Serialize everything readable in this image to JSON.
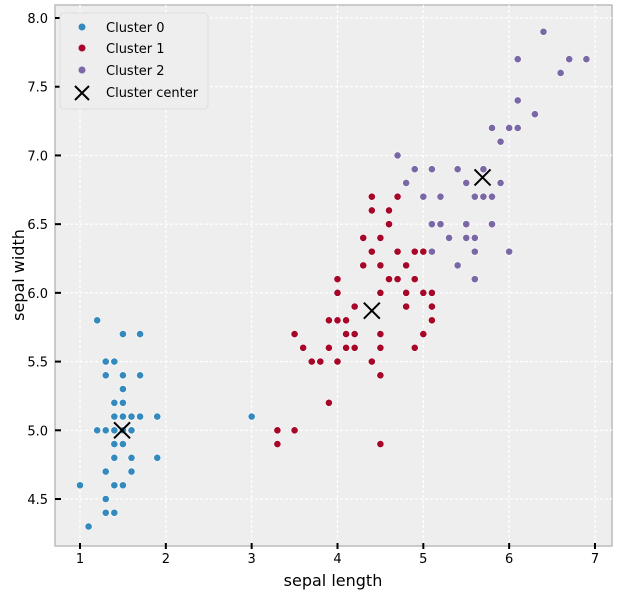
{
  "chart_data": {
    "type": "scatter",
    "xlabel": "sepal length",
    "ylabel": "sepal width",
    "xlim": [
      0.7,
      7.2
    ],
    "ylim": [
      4.15,
      8.1
    ],
    "xticks": [
      "1",
      "2",
      "3",
      "4",
      "5",
      "6",
      "7"
    ],
    "yticks": [
      "4.5",
      "5.0",
      "5.5",
      "6.0",
      "6.5",
      "7.0",
      "7.5",
      "8.0"
    ],
    "grid": true,
    "legend_position": "top-left",
    "legend": [
      "Cluster 0",
      "Cluster 1",
      "Cluster 2",
      "Cluster center"
    ],
    "colors": {
      "cluster0": "#348ABD",
      "cluster1": "#A60628",
      "cluster2": "#7A68A6",
      "center": "#000000",
      "background": "#EEEEEE"
    },
    "centers": [
      [
        1.49,
        5.0
      ],
      [
        4.4,
        5.87
      ],
      [
        5.69,
        6.84
      ]
    ],
    "points": [
      [
        1.4,
        5.1
      ],
      [
        1.4,
        4.9
      ],
      [
        1.3,
        4.7
      ],
      [
        1.5,
        4.6
      ],
      [
        1.4,
        5.0
      ],
      [
        1.7,
        5.4
      ],
      [
        1.4,
        4.6
      ],
      [
        1.5,
        5.0
      ],
      [
        1.4,
        4.4
      ],
      [
        1.5,
        4.9
      ],
      [
        1.5,
        5.4
      ],
      [
        1.6,
        4.8
      ],
      [
        1.4,
        4.8
      ],
      [
        1.1,
        4.3
      ],
      [
        1.2,
        5.8
      ],
      [
        1.5,
        5.7
      ],
      [
        1.3,
        5.4
      ],
      [
        1.4,
        5.1
      ],
      [
        1.7,
        5.7
      ],
      [
        1.5,
        5.1
      ],
      [
        1.7,
        5.4
      ],
      [
        1.5,
        5.1
      ],
      [
        1.0,
        4.6
      ],
      [
        1.7,
        5.1
      ],
      [
        1.9,
        4.8
      ],
      [
        1.6,
        5.0
      ],
      [
        1.6,
        5.0
      ],
      [
        1.5,
        5.2
      ],
      [
        1.4,
        5.2
      ],
      [
        1.6,
        4.7
      ],
      [
        1.6,
        4.8
      ],
      [
        1.5,
        5.4
      ],
      [
        1.5,
        5.2
      ],
      [
        1.4,
        5.5
      ],
      [
        1.5,
        4.9
      ],
      [
        1.2,
        5.0
      ],
      [
        1.3,
        5.5
      ],
      [
        1.4,
        4.9
      ],
      [
        1.3,
        4.4
      ],
      [
        1.5,
        5.1
      ],
      [
        1.3,
        5.0
      ],
      [
        1.3,
        4.5
      ],
      [
        1.3,
        4.4
      ],
      [
        1.6,
        5.0
      ],
      [
        1.9,
        5.1
      ],
      [
        1.4,
        4.8
      ],
      [
        1.6,
        5.1
      ],
      [
        1.4,
        4.6
      ],
      [
        1.5,
        5.3
      ],
      [
        1.4,
        5.0
      ],
      [
        4.7,
        7.0
      ],
      [
        4.5,
        6.4
      ],
      [
        4.9,
        6.9
      ],
      [
        4.0,
        5.5
      ],
      [
        4.6,
        6.5
      ],
      [
        4.5,
        5.7
      ],
      [
        4.7,
        6.3
      ],
      [
        3.3,
        4.9
      ],
      [
        4.6,
        6.6
      ],
      [
        3.9,
        5.2
      ],
      [
        3.5,
        5.0
      ],
      [
        4.2,
        5.9
      ],
      [
        4.0,
        6.0
      ],
      [
        4.7,
        6.1
      ],
      [
        3.6,
        5.6
      ],
      [
        4.4,
        6.7
      ],
      [
        4.5,
        5.6
      ],
      [
        4.1,
        5.8
      ],
      [
        4.5,
        6.2
      ],
      [
        3.9,
        5.6
      ],
      [
        4.8,
        5.9
      ],
      [
        4.0,
        6.1
      ],
      [
        4.9,
        6.3
      ],
      [
        4.7,
        6.1
      ],
      [
        4.3,
        6.4
      ],
      [
        4.4,
        6.6
      ],
      [
        4.8,
        6.8
      ],
      [
        5.0,
        6.7
      ],
      [
        4.5,
        6.0
      ],
      [
        3.5,
        5.7
      ],
      [
        3.8,
        5.5
      ],
      [
        3.7,
        5.5
      ],
      [
        3.9,
        5.8
      ],
      [
        5.1,
        6.0
      ],
      [
        4.5,
        5.4
      ],
      [
        4.5,
        6.0
      ],
      [
        4.7,
        6.7
      ],
      [
        4.4,
        6.3
      ],
      [
        4.1,
        5.6
      ],
      [
        4.0,
        5.5
      ],
      [
        4.4,
        5.5
      ],
      [
        4.6,
        6.1
      ],
      [
        4.0,
        5.8
      ],
      [
        3.3,
        5.0
      ],
      [
        4.2,
        5.6
      ],
      [
        4.2,
        5.7
      ],
      [
        4.2,
        5.7
      ],
      [
        4.3,
        6.2
      ],
      [
        3.0,
        5.1
      ],
      [
        4.1,
        5.7
      ],
      [
        6.0,
        6.3
      ],
      [
        5.1,
        5.8
      ],
      [
        5.9,
        7.1
      ],
      [
        5.6,
        6.3
      ],
      [
        5.8,
        6.5
      ],
      [
        6.6,
        7.6
      ],
      [
        4.5,
        4.9
      ],
      [
        6.3,
        7.3
      ],
      [
        5.8,
        6.7
      ],
      [
        6.1,
        7.2
      ],
      [
        5.1,
        6.5
      ],
      [
        5.3,
        6.4
      ],
      [
        5.5,
        6.8
      ],
      [
        5.0,
        5.7
      ],
      [
        5.1,
        5.8
      ],
      [
        5.3,
        6.4
      ],
      [
        5.5,
        6.5
      ],
      [
        6.7,
        7.7
      ],
      [
        6.9,
        7.7
      ],
      [
        5.0,
        6.0
      ],
      [
        5.7,
        6.9
      ],
      [
        4.9,
        5.6
      ],
      [
        6.7,
        7.7
      ],
      [
        4.9,
        6.3
      ],
      [
        5.7,
        6.7
      ],
      [
        6.0,
        7.2
      ],
      [
        4.8,
        6.2
      ],
      [
        4.9,
        6.1
      ],
      [
        5.6,
        6.4
      ],
      [
        5.8,
        7.2
      ],
      [
        6.1,
        7.4
      ],
      [
        6.4,
        7.9
      ],
      [
        5.6,
        6.4
      ],
      [
        5.1,
        6.3
      ],
      [
        5.6,
        6.1
      ],
      [
        6.1,
        7.7
      ],
      [
        5.6,
        6.3
      ],
      [
        5.5,
        6.4
      ],
      [
        4.8,
        6.0
      ],
      [
        5.4,
        6.9
      ],
      [
        5.6,
        6.7
      ],
      [
        5.1,
        6.9
      ],
      [
        5.1,
        5.8
      ],
      [
        5.9,
        6.8
      ],
      [
        5.7,
        6.7
      ],
      [
        5.2,
        6.7
      ],
      [
        5.0,
        6.3
      ],
      [
        5.2,
        6.5
      ],
      [
        5.4,
        6.2
      ],
      [
        5.1,
        5.9
      ]
    ]
  }
}
